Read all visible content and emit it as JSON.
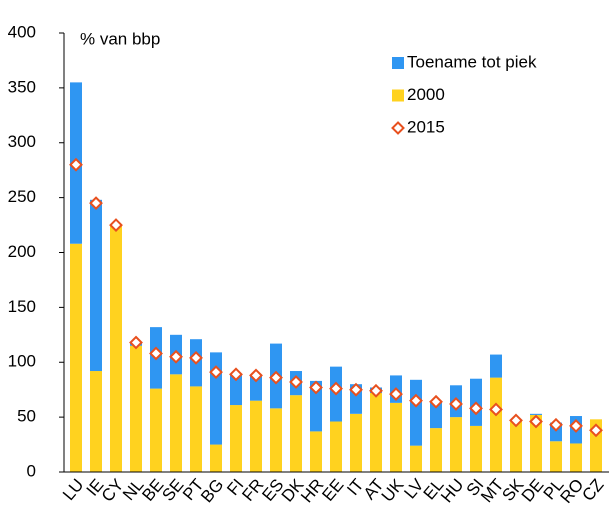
{
  "chart_data": {
    "type": "bar",
    "stacked": true,
    "y_label": "% van bbp",
    "categories": [
      "LU",
      "IE",
      "CY",
      "NL",
      "BE",
      "SE",
      "PT",
      "BG",
      "FI",
      "FR",
      "ES",
      "DK",
      "HR",
      "EE",
      "IT",
      "AT",
      "UK",
      "LV",
      "EL",
      "HU",
      "SI",
      "MT",
      "SK",
      "DE",
      "PL",
      "RO",
      "CZ"
    ],
    "series": [
      {
        "name": "Toename tot piek",
        "type": "bar",
        "color": "#2f96f2",
        "values": [
          147,
          156,
          0,
          3,
          56,
          36,
          43,
          84,
          27,
          23,
          59,
          22,
          46,
          50,
          27,
          5,
          25,
          60,
          25,
          29,
          43,
          21,
          0,
          1,
          17,
          25,
          0
        ]
      },
      {
        "name": "2000",
        "type": "bar",
        "color": "#ffd21f",
        "values": [
          208,
          92,
          225,
          115,
          76,
          89,
          78,
          25,
          61,
          65,
          58,
          70,
          37,
          46,
          53,
          72,
          63,
          24,
          40,
          50,
          42,
          86,
          46,
          52,
          28,
          26,
          48
        ]
      },
      {
        "name": "2015",
        "type": "scatter",
        "marker": "diamond",
        "color": "#e8501e",
        "values": [
          280,
          245,
          225,
          118,
          108,
          105,
          104,
          91,
          89,
          88,
          86,
          82,
          77,
          76,
          75,
          74,
          71,
          65,
          64,
          62,
          58,
          57,
          47,
          46,
          43,
          42,
          38
        ]
      }
    ],
    "ylim": [
      0,
      400
    ],
    "yticks": [
      0,
      50,
      100,
      150,
      200,
      250,
      300,
      350,
      400
    ],
    "legend": "top-right"
  }
}
